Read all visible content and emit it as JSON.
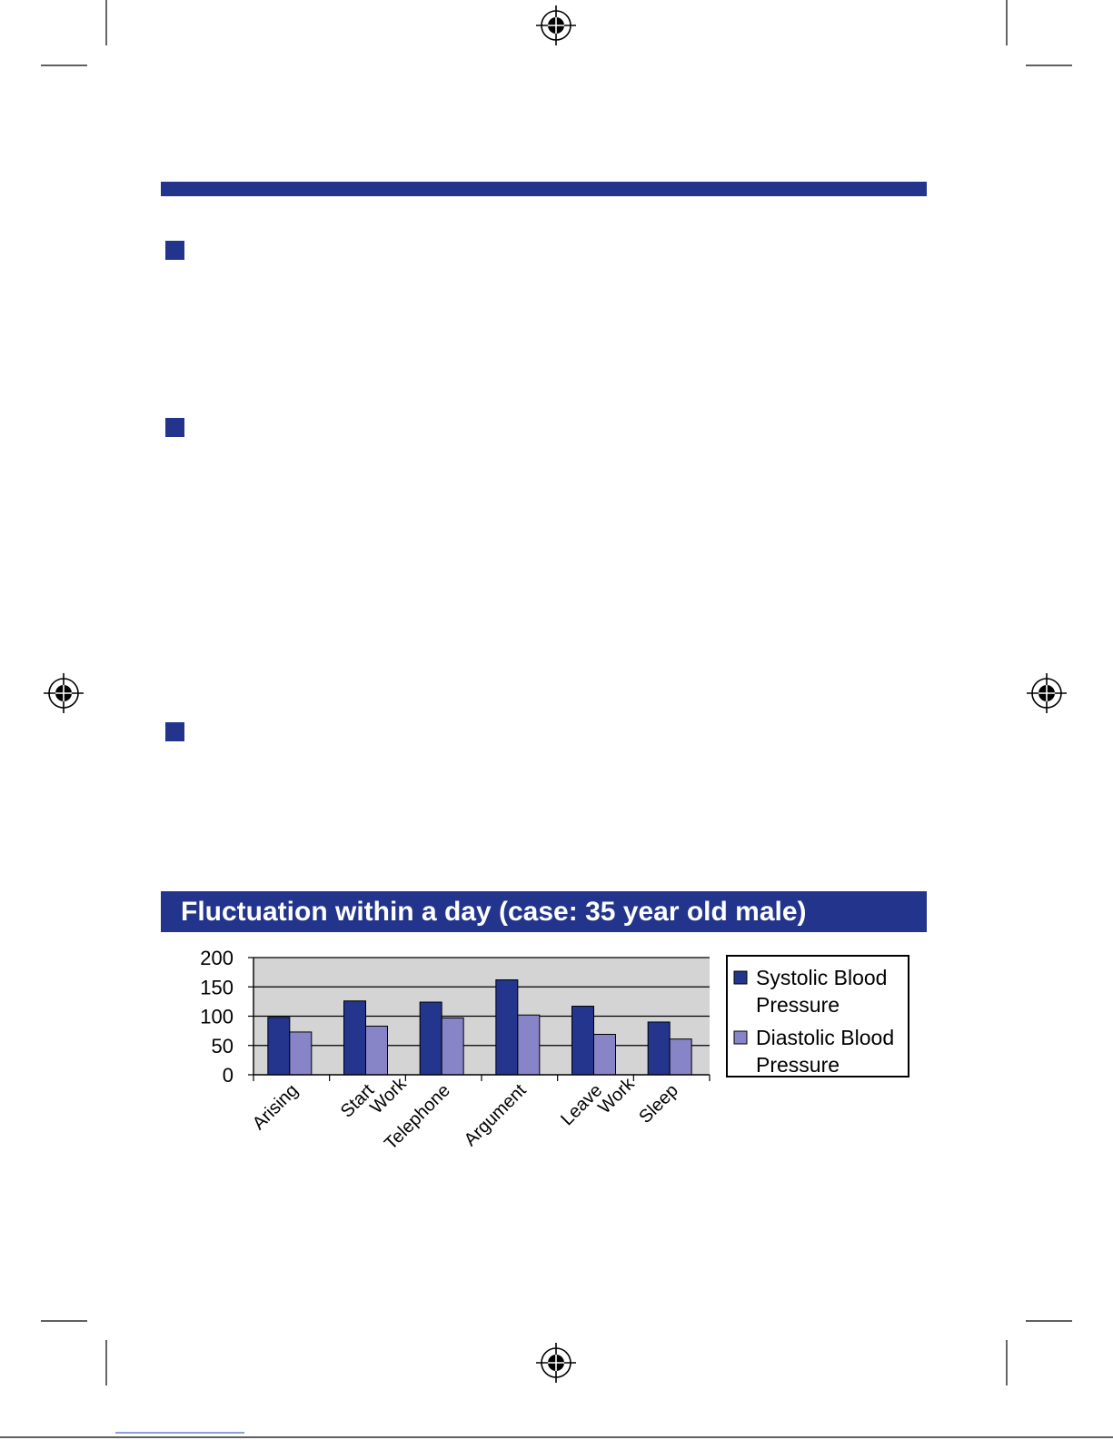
{
  "colors": {
    "brand_navy": "#22348b",
    "systolic": "#23358c",
    "diastolic": "#8784c7",
    "plot_bg": "#d4d4d4"
  },
  "icons": {
    "registration_mark": "registration-mark-icon",
    "bullet": "square-bullet-icon"
  },
  "chart_data": {
    "type": "bar",
    "title": "Fluctuation within a day (case: 35 year old male)",
    "xlabel": "",
    "ylabel": "",
    "ylim": [
      0,
      200
    ],
    "yticks": [
      0,
      50,
      100,
      150,
      200
    ],
    "grid": true,
    "legend_position": "right",
    "categories": [
      "Arising",
      "Start Work",
      "Telephone",
      "Argument",
      "Leave Work",
      "Sleep"
    ],
    "category_label_lines": [
      [
        "Arising"
      ],
      [
        "Start",
        "Work"
      ],
      [
        "Telephone"
      ],
      [
        "Argument"
      ],
      [
        "Leave",
        "Work"
      ],
      [
        "Sleep"
      ]
    ],
    "series": [
      {
        "name": "Systolic Blood Pressure",
        "name_lines": [
          "Systolic Blood",
          "Pressure"
        ],
        "color": "#23358c",
        "values": [
          98,
          126,
          124,
          162,
          117,
          90
        ]
      },
      {
        "name": "Diastolic Blood Pressure",
        "name_lines": [
          "Diastolic Blood",
          "Pressure"
        ],
        "color": "#8784c7",
        "values": [
          73,
          83,
          97,
          102,
          69,
          61
        ]
      }
    ]
  }
}
